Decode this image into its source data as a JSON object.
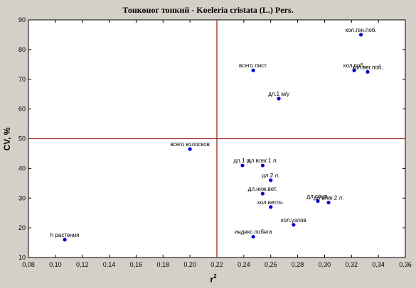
{
  "chart_data": {
    "type": "scatter",
    "title": "Тонконог тонкий - Koeleria cristata (L.) Pers.",
    "xlabel": "r",
    "xlabel_sup": "2",
    "ylabel": "CV, %",
    "xlim": [
      0.08,
      0.36
    ],
    "ylim": [
      10,
      90
    ],
    "xticks": [
      "0,08",
      "0,10",
      "0,12",
      "0,14",
      "0,16",
      "0,18",
      "0,20",
      "0,22",
      "0,24",
      "0,26",
      "0,28",
      "0,30",
      "0,32",
      "0,34",
      "0,36"
    ],
    "yticks": [
      "10",
      "20",
      "30",
      "40",
      "50",
      "60",
      "70",
      "80",
      "90"
    ],
    "reference_lines": {
      "x": 0.22,
      "y": 50,
      "color": "#a52a2a"
    },
    "point_color": "#0000cc",
    "points": [
      {
        "label": "кол.ген.поб.",
        "x": 0.327,
        "y": 85
      },
      {
        "label": "кол.поб.",
        "x": 0.322,
        "y": 73
      },
      {
        "label": "кол.вег.поб.",
        "x": 0.332,
        "y": 72.5
      },
      {
        "label": "всего лист.",
        "x": 0.247,
        "y": 73
      },
      {
        "label": "дл.1 м/у",
        "x": 0.266,
        "y": 63.5
      },
      {
        "label": "всего колосков",
        "x": 0.2,
        "y": 46.5
      },
      {
        "label": "дл.1 л.",
        "x": 0.239,
        "y": 41
      },
      {
        "label": "дл.влаг.1 л.",
        "x": 0.254,
        "y": 41
      },
      {
        "label": "дл.2 л.",
        "x": 0.26,
        "y": 36
      },
      {
        "label": "дл.ниж.вет.",
        "x": 0.254,
        "y": 31.5
      },
      {
        "label": "дл.соцв.",
        "x": 0.295,
        "y": 29
      },
      {
        "label": "дл.влаг.2 л.",
        "x": 0.303,
        "y": 28.5
      },
      {
        "label": "кол.веточ.",
        "x": 0.26,
        "y": 27
      },
      {
        "label": "кол.узлов",
        "x": 0.277,
        "y": 21
      },
      {
        "label": "индекс побега",
        "x": 0.247,
        "y": 17
      },
      {
        "label": "h растения",
        "x": 0.107,
        "y": 16
      }
    ]
  }
}
